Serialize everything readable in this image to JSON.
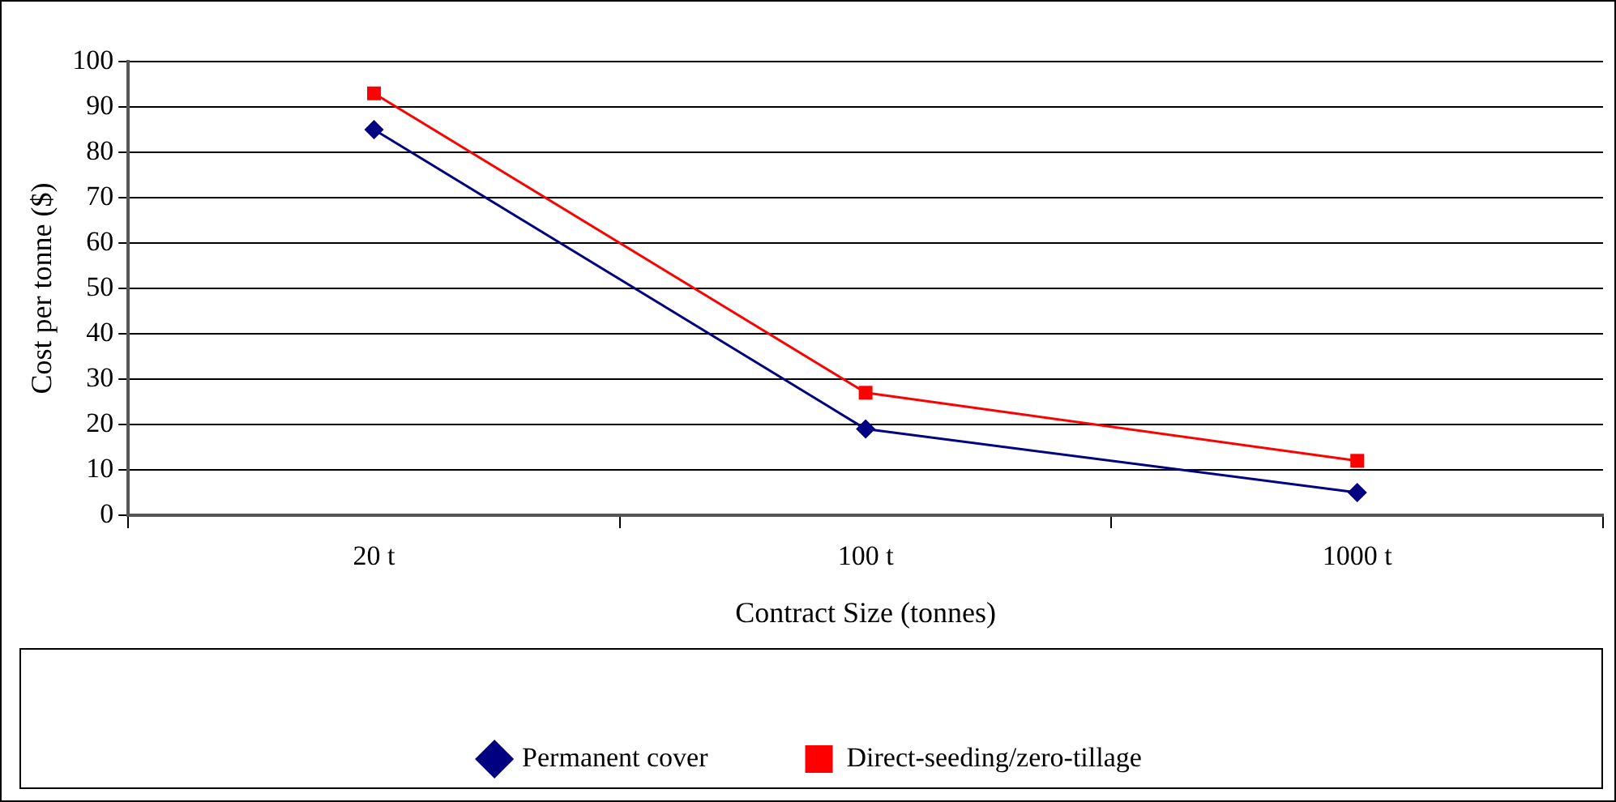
{
  "chart_data": {
    "type": "line",
    "xlabel": "Contract Size (tonnes)",
    "ylabel": "Cost per tonne ($)",
    "categories": [
      "20 t",
      "100 t",
      "1000 t"
    ],
    "series": [
      {
        "name": "Permanent cover",
        "color": "#000080",
        "marker": "diamond",
        "values": [
          85,
          19,
          5
        ]
      },
      {
        "name": "Direct-seeding/zero-tillage",
        "color": "#ff0000",
        "marker": "square",
        "values": [
          93,
          27,
          12
        ]
      }
    ],
    "ylim": [
      0,
      100
    ],
    "yticks": [
      0,
      10,
      20,
      30,
      40,
      50,
      60,
      70,
      80,
      90,
      100
    ],
    "grid": "y",
    "legend": "bottom",
    "line_style": "solid"
  }
}
